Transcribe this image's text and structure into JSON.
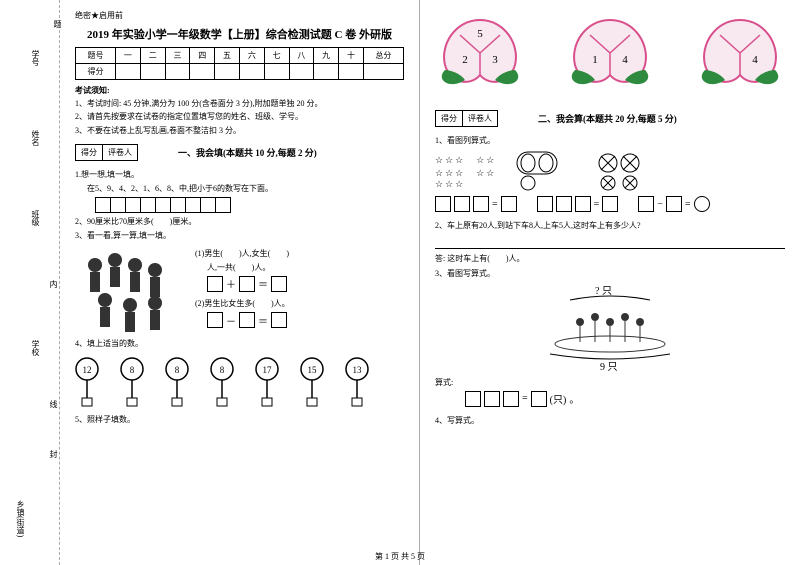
{
  "leftMargin": {
    "labels": [
      "学号",
      "姓名",
      "班级",
      "学校",
      "乡镇(街道)"
    ],
    "dashedLabels": [
      "内",
      "线",
      "封"
    ],
    "topChar": "题"
  },
  "header": {
    "confidential": "绝密★启用前",
    "title": "2019 年实验小学一年级数学【上册】综合检测试题 C 卷 外研版"
  },
  "scoreTable": {
    "row1": [
      "题号",
      "一",
      "二",
      "三",
      "四",
      "五",
      "六",
      "七",
      "八",
      "九",
      "十",
      "总分"
    ],
    "row2Label": "得分"
  },
  "instructions": {
    "heading": "考试须知:",
    "items": [
      "1、考试时间: 45 分钟,满分为 100 分(含卷面分 3 分),附加题单独 20 分。",
      "2、请首先按要求在试卷的指定位置填写您的姓名、班级、学号。",
      "3、不要在试卷上乱写乱画,卷面不整洁扣 3 分。"
    ]
  },
  "scoreBox": {
    "left": "得分",
    "right": "评卷人"
  },
  "section1": {
    "title": "一、我会填(本题共 10 分,每题 2 分)",
    "q1a": "1.想一想,填一填。",
    "q1b": "在5、9、4、2、1、6、8、中,把小于6的数写在下面。",
    "q2": "2、90厘米比70厘米多(　　)厘米。",
    "q3": "3、看一看,算一算,填一填。",
    "q3_1a": "(1)男生(　　)人,女生(　　)",
    "q3_1b": "人,一共(　　)人。",
    "q3_2": "(2)男生比女生多(　　)人。",
    "q4": "4、填上适当的数。",
    "q5": "5、照样子填数。",
    "keyNumbers": [
      "12",
      "8",
      "8",
      "8",
      "17",
      "15",
      "13"
    ]
  },
  "section2": {
    "title": "二、我会算(本题共 20 分,每题 5 分)",
    "q1": "1、看图列算式。",
    "q2": "2、车上原有20人,到站下车8人,上车5人,这时车上有多少人?",
    "q2ans": "答: 这时车上有(　　)人。",
    "q3": "3、看图写算式。",
    "q3top": "? 只",
    "q3bottom": "9 只",
    "q3unit": "(只)",
    "q4": "4、写算式。"
  },
  "peaches": {
    "p1": [
      "5",
      "2",
      "3"
    ],
    "p2": [
      "1",
      "4"
    ],
    "p3": [
      "4"
    ]
  },
  "colors": {
    "peachOutline": "#d94f8c",
    "peachFill": "#f8e8f0",
    "leaf": "#2d8a3e",
    "keyGray": "#888"
  },
  "footer": "第 1 页 共 5 页"
}
